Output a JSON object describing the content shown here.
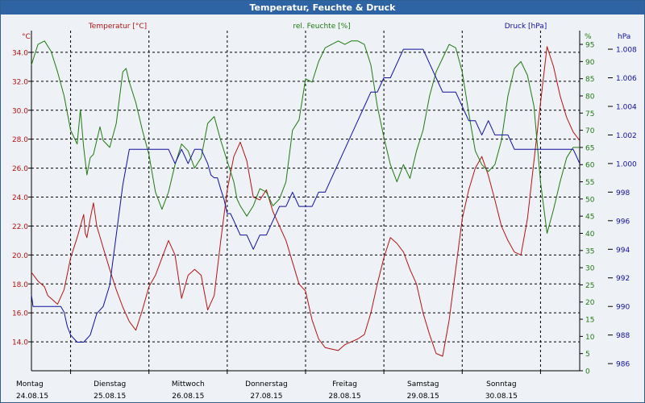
{
  "window": {
    "title": "Temperatur, Feuchte & Druck"
  },
  "colors": {
    "temperature": "#b31414",
    "humidity": "#1f7a12",
    "pressure": "#1010a0",
    "grid": "#000000",
    "plot_bg": "#eef1f5",
    "title_bg": "#2e64a3"
  },
  "chart_data": {
    "type": "line",
    "title": "Temperatur, Feuchte & Druck",
    "x": {
      "label": "",
      "range_hours": [
        0,
        168
      ],
      "days": [
        {
          "name": "Montag",
          "date": "24.08.15"
        },
        {
          "name": "Dienstag",
          "date": "25.08.15"
        },
        {
          "name": "Mittwoch",
          "date": "26.08.15"
        },
        {
          "name": "Donnerstag",
          "date": "27.08.15"
        },
        {
          "name": "Freitag",
          "date": "28.08.15"
        },
        {
          "name": "Samstag",
          "date": "29.08.15"
        },
        {
          "name": "Sonntag",
          "date": "30.08.15"
        }
      ]
    },
    "axes": {
      "temperature": {
        "label": "Temperatur [°C]",
        "unit": "°C",
        "range": [
          12,
          35.5
        ],
        "ticks": [
          "14.0",
          "16.0",
          "18.0",
          "20.0",
          "22.0",
          "24.0",
          "26.0",
          "28.0",
          "30.0",
          "32.0",
          "34.0"
        ]
      },
      "humidity": {
        "label": "rel. Feuchte [%]",
        "unit": "%",
        "range": [
          0,
          99
        ],
        "ticks": [
          "0",
          "5",
          "10",
          "15",
          "20",
          "25",
          "30",
          "35",
          "40",
          "45",
          "50",
          "55",
          "60",
          "65",
          "70",
          "75",
          "80",
          "85",
          "90",
          "95"
        ]
      },
      "pressure": {
        "label": "Druck [hPa]",
        "unit": "hPa",
        "range": [
          985.5,
          1009.3
        ],
        "ticks": [
          "986",
          "988",
          "990",
          "992",
          "994",
          "996",
          "998",
          "1.000",
          "1.002",
          "1.004",
          "1.006",
          "1.008"
        ]
      }
    },
    "series": [
      {
        "name": "Temperatur",
        "axis": "temperature",
        "hours": [
          0,
          2,
          4,
          5,
          6,
          8,
          10,
          12,
          14,
          16,
          16.5,
          17,
          18,
          19,
          20,
          22,
          24,
          26,
          28,
          30,
          32,
          34,
          36,
          38,
          40,
          42,
          44,
          46,
          48,
          50,
          52,
          54,
          56,
          58,
          60,
          62,
          64,
          66,
          68,
          70,
          72,
          74,
          76,
          78,
          80,
          82,
          84,
          86,
          88,
          90,
          92,
          94,
          96,
          98,
          100,
          102,
          104,
          106,
          108,
          110,
          112,
          114,
          116,
          118,
          120,
          122,
          124,
          126,
          128,
          130,
          132,
          134,
          136,
          138,
          140,
          142,
          144,
          146,
          148,
          150,
          152,
          154,
          156,
          158,
          160,
          162,
          164,
          166,
          168
        ],
        "values": [
          18.8,
          18.2,
          17.8,
          17.2,
          17.0,
          16.6,
          17.6,
          19.8,
          21.2,
          22.8,
          21.5,
          21.2,
          22.5,
          23.6,
          22.0,
          20.5,
          19.0,
          17.6,
          16.4,
          15.4,
          14.8,
          16.2,
          17.8,
          18.6,
          19.8,
          21.0,
          20.0,
          17.0,
          18.6,
          19.0,
          18.6,
          16.2,
          17.2,
          21.0,
          24.5,
          26.8,
          27.8,
          26.5,
          24.0,
          23.8,
          24.5,
          23.0,
          22.0,
          21.0,
          19.5,
          18.0,
          17.5,
          15.5,
          14.2,
          13.6,
          13.5,
          13.4,
          13.8,
          14.0,
          14.2,
          14.5,
          16.0,
          18.0,
          19.8,
          21.2,
          20.8,
          20.2,
          19.0,
          18.0,
          16.0,
          14.5,
          13.2,
          13.0,
          15.5,
          19.0,
          22.5,
          24.5,
          26.0,
          26.8,
          25.5,
          23.8,
          22.0,
          21.0,
          20.2,
          20.0,
          22.5,
          26.5,
          30.5,
          34.4,
          33.0,
          31.0,
          29.5,
          28.5,
          27.9
        ]
      },
      {
        "name": "rel. Feuchte",
        "axis": "humidity",
        "hours": [
          0,
          1,
          2,
          4,
          6,
          8,
          10,
          12,
          14,
          15,
          16,
          17,
          18,
          19,
          20,
          21,
          22,
          24,
          26,
          28,
          29,
          30,
          32,
          34,
          36,
          38,
          40,
          42,
          44,
          46,
          48,
          50,
          52,
          54,
          56,
          58,
          60,
          62,
          63,
          64,
          66,
          68,
          70,
          72,
          74,
          76,
          78,
          80,
          82,
          84,
          86,
          88,
          90,
          92,
          94,
          96,
          98,
          100,
          102,
          104,
          106,
          108,
          110,
          112,
          114,
          116,
          118,
          120,
          122,
          124,
          126,
          128,
          130,
          132,
          134,
          136,
          138,
          140,
          142,
          144,
          146,
          148,
          150,
          152,
          154,
          156,
          158,
          160,
          162,
          164,
          166,
          168
        ],
        "values": [
          89,
          92,
          95,
          96,
          93,
          87,
          80,
          70,
          66,
          76,
          65,
          57,
          62,
          63,
          67,
          71,
          67,
          65,
          72,
          87,
          88,
          84,
          78,
          70,
          63,
          52,
          47,
          52,
          60,
          66,
          64,
          59,
          62,
          72,
          74,
          67,
          61,
          55,
          50,
          48,
          45,
          48,
          53,
          52,
          48,
          50,
          55,
          70,
          73,
          85,
          84,
          90,
          94,
          95,
          96,
          95,
          96,
          96,
          95,
          89,
          77,
          68,
          60,
          55,
          60,
          56,
          64,
          70,
          80,
          87,
          91,
          95,
          94,
          87,
          75,
          64,
          60,
          58,
          60,
          67,
          80,
          88,
          90,
          86,
          77,
          55,
          40,
          47,
          55,
          62,
          65,
          65
        ]
      },
      {
        "name": "Druck",
        "axis": "pressure",
        "hours": [
          0,
          0.5,
          1,
          3,
          5,
          7,
          9,
          10,
          11,
          12,
          14,
          16,
          18,
          20,
          22,
          24,
          26,
          28,
          30,
          32,
          34,
          36,
          38,
          40,
          42,
          44,
          46,
          48,
          50,
          52,
          54,
          55,
          56,
          57,
          58,
          59,
          60,
          61,
          62,
          64,
          66,
          68,
          70,
          72,
          74,
          76,
          78,
          80,
          82,
          84,
          86,
          88,
          90,
          92,
          94,
          96,
          98,
          100,
          102,
          104,
          106,
          108,
          110,
          112,
          114,
          116,
          118,
          120,
          122,
          124,
          126,
          128,
          130,
          132,
          134,
          136,
          138,
          140,
          142,
          144,
          146,
          148,
          150,
          152,
          154,
          156,
          158,
          160,
          162,
          164,
          166,
          167,
          168
        ],
        "values": [
          990.8,
          990.0,
          990.0,
          990.0,
          990.0,
          990.0,
          990.0,
          989.6,
          988.6,
          988.0,
          987.5,
          987.5,
          988.0,
          989.5,
          990.0,
          991.5,
          995.0,
          998.5,
          1001.0,
          1001.0,
          1001.0,
          1001.0,
          1001.0,
          1001.0,
          1001.0,
          1000.0,
          1001.0,
          1000.0,
          1001.0,
          1001.0,
          1000.0,
          999.2,
          999.0,
          999.0,
          998.2,
          997.5,
          996.5,
          996.5,
          996.0,
          995.0,
          995.0,
          994.0,
          995.0,
          995.0,
          996.0,
          997.0,
          997.0,
          998.0,
          997.0,
          997.0,
          997.0,
          998.0,
          998.0,
          999.0,
          1000.0,
          1001.0,
          1002.0,
          1003.0,
          1004.0,
          1005.0,
          1005.0,
          1006.0,
          1006.0,
          1007.0,
          1008.0,
          1008.0,
          1008.0,
          1008.0,
          1007.0,
          1006.0,
          1005.0,
          1005.0,
          1005.0,
          1004.0,
          1003.0,
          1003.0,
          1002.0,
          1003.0,
          1002.0,
          1002.0,
          1002.0,
          1001.0,
          1001.0,
          1001.0,
          1001.0,
          1001.0,
          1001.0,
          1001.0,
          1001.0,
          1001.0,
          1001.0,
          1000.5,
          1000.0
        ]
      }
    ]
  }
}
